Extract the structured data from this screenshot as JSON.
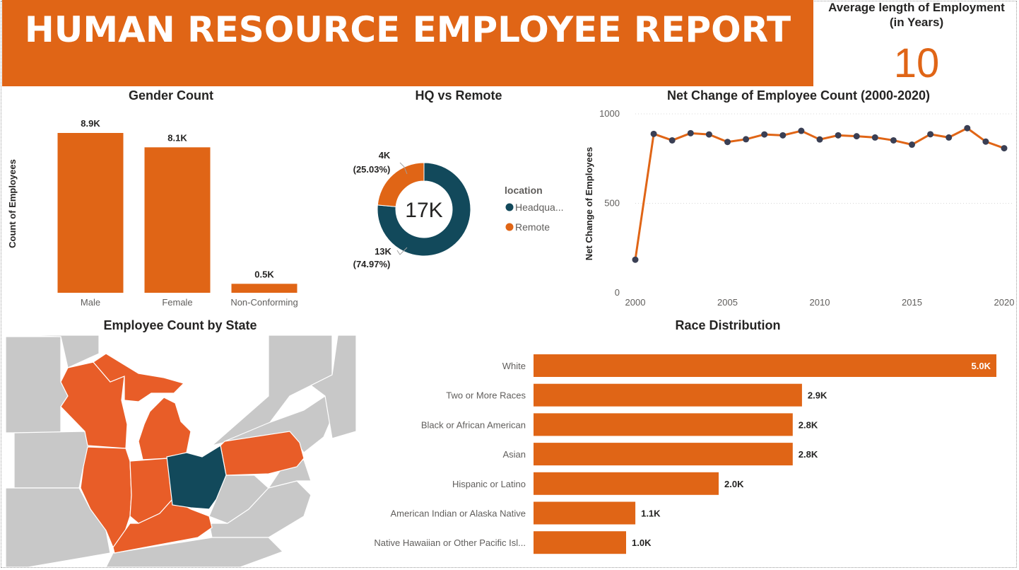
{
  "header": {
    "title": "HUMAN RESOURCE EMPLOYEE REPORT"
  },
  "kpi": {
    "label_line1": "Average length of Employment",
    "label_line2": "(in Years)",
    "value": "10"
  },
  "colors": {
    "orange": "#e06516",
    "map_orange": "#e85d28",
    "teal": "#12495b",
    "line_marker": "#3a3f54",
    "map_gray": "#c8c8c8"
  },
  "chart_data": [
    {
      "id": "gender",
      "type": "bar",
      "title": "Gender Count",
      "ylabel": "Count of Employees",
      "categories": [
        "Male",
        "Female",
        "Non-Conforming"
      ],
      "values": [
        8900,
        8100,
        500
      ],
      "data_labels": [
        "8.9K",
        "8.1K",
        "0.5K"
      ],
      "ylim": [
        0,
        10000
      ]
    },
    {
      "id": "location",
      "type": "pie",
      "title": "HQ vs Remote",
      "center_label": "17K",
      "legend_title": "location",
      "slices": [
        {
          "name": "Headqua...",
          "value": 13000,
          "label": "13K",
          "pct": "(74.97%)",
          "color": "#12495b"
        },
        {
          "name": "Remote",
          "value": 4000,
          "label": "4K",
          "pct": "(25.03%)",
          "color": "#e06516"
        }
      ]
    },
    {
      "id": "netchange",
      "type": "line",
      "title": "Net Change of Employee Count (2000-2020)",
      "ylabel": "Net Change of Employees",
      "x": [
        2000,
        2001,
        2002,
        2003,
        2004,
        2005,
        2006,
        2007,
        2008,
        2009,
        2010,
        2011,
        2012,
        2013,
        2014,
        2015,
        2016,
        2017,
        2018,
        2019,
        2020
      ],
      "y": [
        185,
        888,
        852,
        892,
        885,
        843,
        858,
        885,
        880,
        905,
        857,
        880,
        875,
        868,
        852,
        828,
        886,
        868,
        920,
        845,
        808
      ],
      "xticks": [
        "2000",
        "2005",
        "2010",
        "2015",
        "2020"
      ],
      "yticks": [
        "0",
        "500",
        "1000"
      ],
      "xlim": [
        2000,
        2020
      ],
      "ylim": [
        0,
        1000
      ]
    },
    {
      "id": "race",
      "type": "bar",
      "orientation": "horizontal",
      "title": "Race Distribution",
      "categories": [
        "White",
        "Two or More Races",
        "Black or African American",
        "Asian",
        "Hispanic or Latino",
        "American Indian or Alaska Native",
        "Native Hawaiian or Other Pacific Isl..."
      ],
      "values": [
        5000,
        2900,
        2800,
        2800,
        2000,
        1100,
        1000
      ],
      "data_labels": [
        "5.0K",
        "2.9K",
        "2.8K",
        "2.8K",
        "2.0K",
        "1.1K",
        "1.0K"
      ]
    },
    {
      "id": "map",
      "type": "map",
      "title": "Employee Count by State"
    }
  ]
}
